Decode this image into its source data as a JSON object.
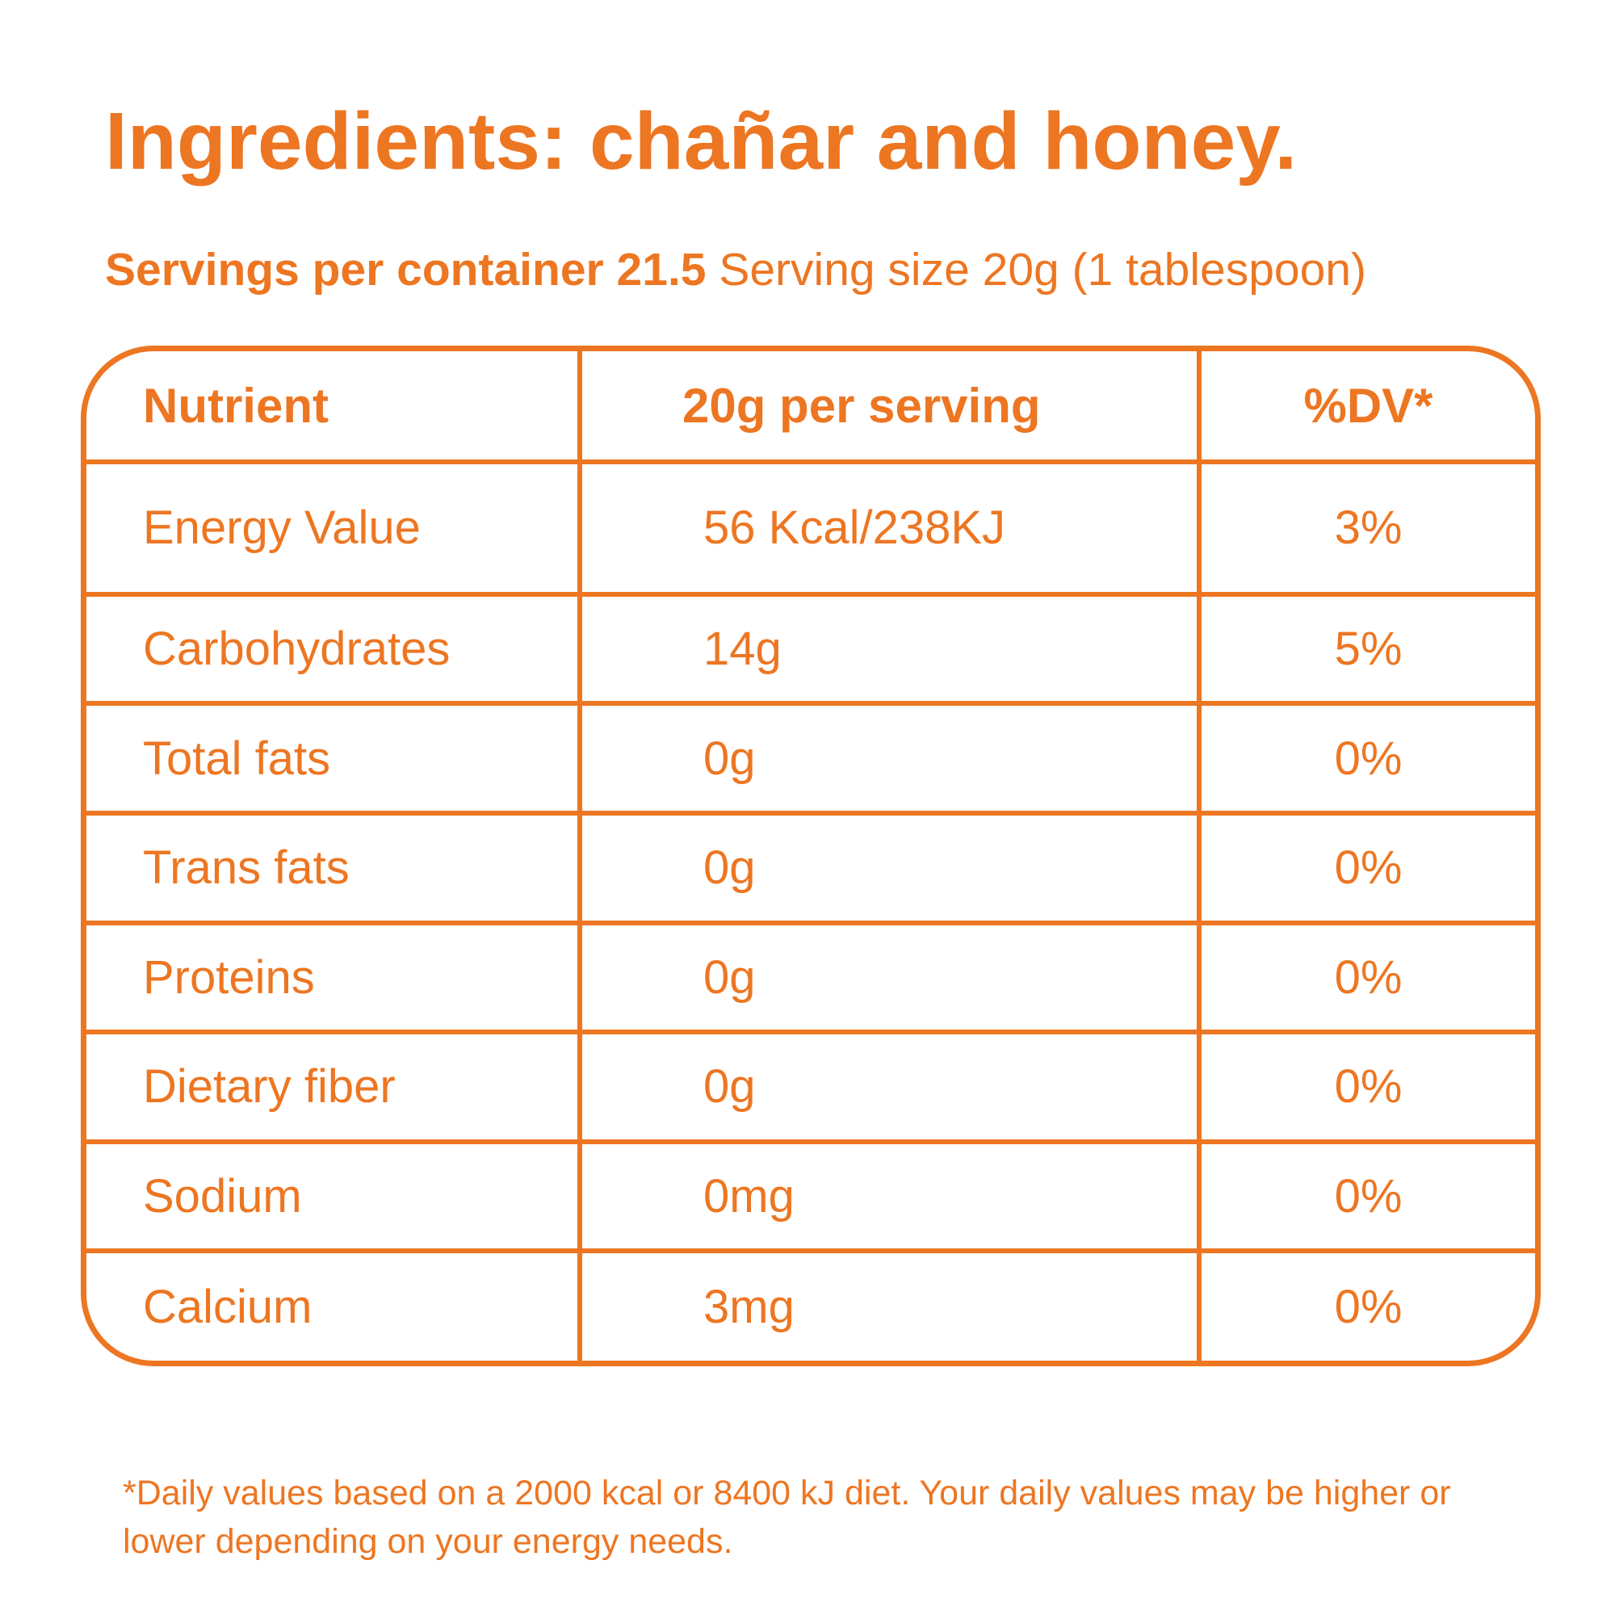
{
  "title": "Ingredients: chañar and honey.",
  "servings": {
    "bold_text": "Servings per container 21.5",
    "regular_text": "Serving size 20g (1 tablespoon)"
  },
  "table": {
    "headers": {
      "nutrient": "Nutrient",
      "amount": "20g per serving",
      "dv": "%DV*"
    },
    "rows": [
      {
        "nutrient": "Energy Value",
        "amount": "56 Kcal/238KJ",
        "dv": "3%"
      },
      {
        "nutrient": "Carbohydrates",
        "amount": "14g",
        "dv": "5%"
      },
      {
        "nutrient": "Total fats",
        "amount": "0g",
        "dv": "0%"
      },
      {
        "nutrient": "Trans fats",
        "amount": "0g",
        "dv": "0%"
      },
      {
        "nutrient": "Proteins",
        "amount": "0g",
        "dv": "0%"
      },
      {
        "nutrient": "Dietary fiber",
        "amount": "0g",
        "dv": "0%"
      },
      {
        "nutrient": "Sodium",
        "amount": "0mg",
        "dv": "0%"
      },
      {
        "nutrient": "Calcium",
        "amount": "3mg",
        "dv": "0%"
      }
    ]
  },
  "footnote": "*Daily values based on a 2000 kcal or 8400 kJ diet. Your daily values may be higher or lower depending on your energy needs.",
  "colors": {
    "accent": "#ED7622",
    "background": "#FFFFFF"
  }
}
